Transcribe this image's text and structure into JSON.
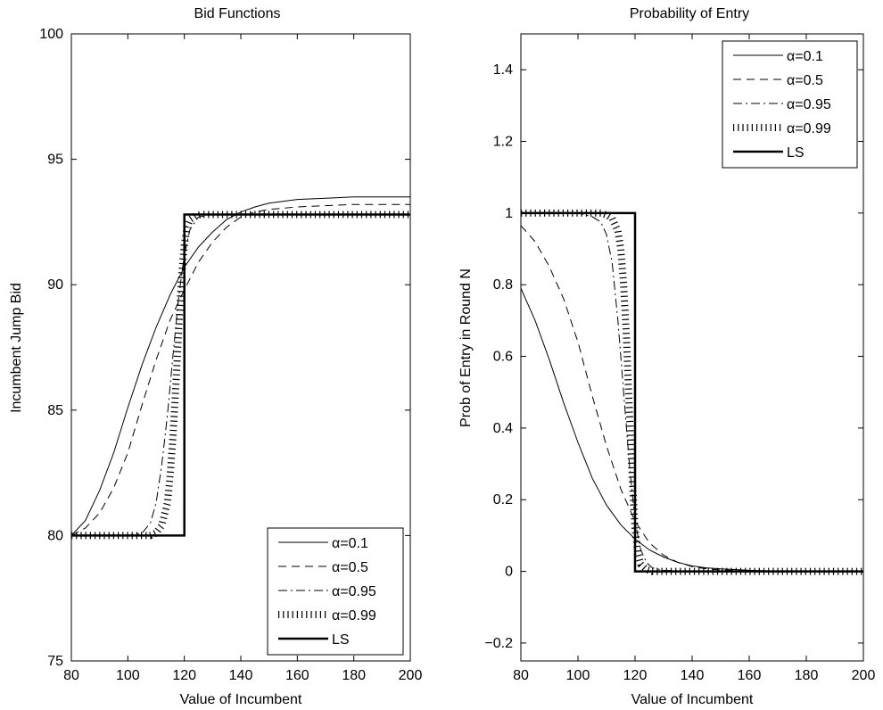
{
  "chart_data": [
    {
      "type": "line",
      "title": "Bid Functions",
      "xlabel": "Value of Incumbent",
      "ylabel": "Incumbent Jump Bid",
      "xlim": [
        80,
        200
      ],
      "ylim": [
        75,
        100
      ],
      "xticks": [
        80,
        100,
        120,
        140,
        160,
        180,
        200
      ],
      "yticks": [
        75,
        80,
        85,
        90,
        95,
        100
      ],
      "legend_position": "bottom-right",
      "grid": false,
      "series": [
        {
          "name": "α=0.1",
          "style": "solid",
          "x": [
            80,
            85,
            90,
            95,
            100,
            105,
            110,
            115,
            120,
            125,
            130,
            135,
            140,
            145,
            150,
            160,
            170,
            180,
            190,
            200
          ],
          "y": [
            80.0,
            80.6,
            81.8,
            83.3,
            85.1,
            86.8,
            88.3,
            89.6,
            90.7,
            91.5,
            92.1,
            92.6,
            92.9,
            93.1,
            93.25,
            93.4,
            93.45,
            93.5,
            93.5,
            93.5
          ]
        },
        {
          "name": "α=0.5",
          "style": "dashed",
          "x": [
            80,
            85,
            90,
            95,
            100,
            105,
            110,
            115,
            120,
            125,
            130,
            135,
            140,
            145,
            150,
            160,
            170,
            180,
            190,
            200
          ],
          "y": [
            80.0,
            80.3,
            80.9,
            81.9,
            83.3,
            85.2,
            87.0,
            88.6,
            89.8,
            90.9,
            91.7,
            92.3,
            92.7,
            92.9,
            93.0,
            93.1,
            93.15,
            93.2,
            93.2,
            93.2
          ]
        },
        {
          "name": "α=0.95",
          "style": "dashdot",
          "x": [
            80,
            100,
            105,
            108,
            110,
            112,
            114,
            116,
            118,
            120,
            122,
            125,
            130,
            140,
            200
          ],
          "y": [
            80.0,
            80.0,
            80.1,
            80.5,
            81.3,
            82.8,
            84.8,
            87.2,
            89.5,
            91.2,
            92.2,
            92.7,
            92.8,
            92.8,
            92.8
          ]
        },
        {
          "name": "α=0.99",
          "style": "ticks",
          "x": [
            80,
            108,
            110,
            112,
            114,
            115,
            116,
            117,
            118,
            119,
            120,
            121,
            122,
            124,
            126,
            200
          ],
          "y": [
            80.0,
            80.0,
            80.1,
            80.4,
            81.3,
            82.4,
            84.0,
            86.0,
            88.2,
            90.3,
            91.6,
            92.3,
            92.6,
            92.75,
            92.8,
            92.8
          ]
        },
        {
          "name": "LS",
          "style": "bold",
          "x": [
            80,
            120,
            120,
            200
          ],
          "y": [
            80.0,
            80.0,
            92.8,
            92.8
          ]
        }
      ]
    },
    {
      "type": "line",
      "title": "Probability of Entry",
      "xlabel": "Value of Incumbent",
      "ylabel": "Prob of Entry in Round N",
      "xlim": [
        80,
        200
      ],
      "ylim": [
        -0.25,
        1.5
      ],
      "xticks": [
        80,
        100,
        120,
        140,
        160,
        180,
        200
      ],
      "yticks": [
        -0.2,
        0,
        0.2,
        0.4,
        0.6,
        0.8,
        1,
        1.2,
        1.4
      ],
      "ytick_labels": [
        "−0.2",
        "0",
        "0.2",
        "0.4",
        "0.6",
        "0.8",
        "1",
        "1.2",
        "1.4"
      ],
      "legend_position": "top-right",
      "grid": false,
      "series": [
        {
          "name": "α=0.1",
          "style": "solid",
          "x": [
            80,
            85,
            90,
            95,
            100,
            105,
            110,
            115,
            120,
            125,
            130,
            135,
            140,
            145,
            150,
            160,
            170,
            180,
            190,
            200
          ],
          "y": [
            0.79,
            0.7,
            0.59,
            0.47,
            0.36,
            0.26,
            0.185,
            0.13,
            0.09,
            0.06,
            0.04,
            0.025,
            0.015,
            0.01,
            0.007,
            0.003,
            0.001,
            0.0,
            0.0,
            0.0
          ]
        },
        {
          "name": "α=0.5",
          "style": "dashed",
          "x": [
            80,
            85,
            90,
            95,
            100,
            105,
            110,
            115,
            120,
            125,
            130,
            135,
            140,
            145,
            150,
            160,
            170,
            180,
            190,
            200
          ],
          "y": [
            0.965,
            0.92,
            0.85,
            0.76,
            0.64,
            0.49,
            0.35,
            0.23,
            0.14,
            0.08,
            0.045,
            0.025,
            0.013,
            0.007,
            0.004,
            0.001,
            0.0,
            0.0,
            0.0,
            0.0
          ]
        },
        {
          "name": "α=0.95",
          "style": "dashdot",
          "x": [
            80,
            100,
            105,
            108,
            110,
            112,
            114,
            116,
            118,
            120,
            122,
            124,
            126,
            130,
            140,
            200
          ],
          "y": [
            1.0,
            1.0,
            0.99,
            0.975,
            0.94,
            0.86,
            0.7,
            0.5,
            0.3,
            0.14,
            0.06,
            0.025,
            0.01,
            0.003,
            0.0,
            0.0
          ]
        },
        {
          "name": "α=0.99",
          "style": "ticks",
          "x": [
            80,
            108,
            110,
            112,
            114,
            115,
            116,
            117,
            118,
            119,
            120,
            121,
            122,
            124,
            126,
            200
          ],
          "y": [
            1.0,
            1.0,
            0.995,
            0.985,
            0.95,
            0.9,
            0.8,
            0.65,
            0.45,
            0.26,
            0.12,
            0.05,
            0.02,
            0.005,
            0.0,
            0.0
          ]
        },
        {
          "name": "LS",
          "style": "bold",
          "x": [
            80,
            120,
            120,
            200
          ],
          "y": [
            1.0,
            1.0,
            0.0,
            0.0
          ]
        }
      ]
    }
  ]
}
